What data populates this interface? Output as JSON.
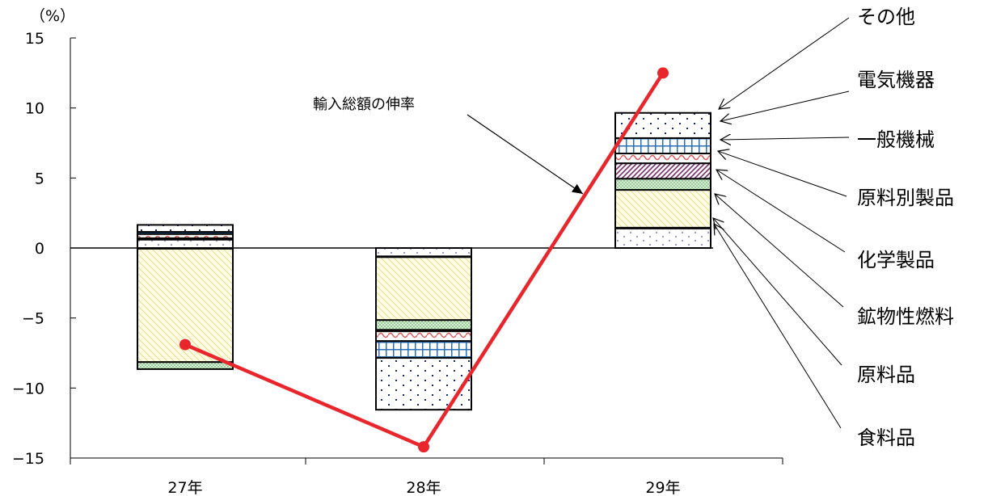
{
  "chart_data": {
    "type": "bar",
    "stacked": true,
    "unit_label": "（%）",
    "categories": [
      "27年",
      "28年",
      "29年"
    ],
    "ylim": [
      -15,
      15
    ],
    "yticks": [
      15,
      10,
      5,
      0,
      -5,
      -10,
      -15
    ],
    "ytick_labels": [
      "15",
      "10",
      "5",
      "0",
      "−5",
      "−10",
      "−15"
    ],
    "series": [
      {
        "name": "食料品",
        "values": [
          0.6,
          -0.6,
          1.4
        ]
      },
      {
        "name": "原料品",
        "values": [
          -0.05,
          -0.05,
          0.05
        ]
      },
      {
        "name": "鉱物性燃料",
        "values": [
          -8.1,
          -4.5,
          2.7
        ]
      },
      {
        "name": "化学製品",
        "values": [
          -0.5,
          -0.7,
          0.8
        ]
      },
      {
        "name": "原料別製品",
        "values": [
          0.1,
          -0.1,
          1.1
        ]
      },
      {
        "name": "一般機械",
        "values": [
          0.3,
          -0.7,
          0.7
        ]
      },
      {
        "name": "電気機器",
        "values": [
          0.15,
          -1.2,
          1.1
        ]
      },
      {
        "name": "その他",
        "values": [
          0.5,
          -3.7,
          1.8
        ]
      }
    ],
    "line": {
      "name": "輸入総額の伸率",
      "values": [
        -6.9,
        -14.2,
        12.5
      ],
      "color": "#e8262c"
    },
    "legend_placement": "right",
    "colors": {
      "outline": "#000000",
      "food": "#9b9bd6",
      "mineral_fuel": "#e8e07a",
      "chemical": "#b85a8e",
      "raw_mfg": "#7fbf7f",
      "machinery": "#7a2a6e",
      "general_machinery": "#e25a5a",
      "electrical": "#2a6fb5",
      "other": "#1a2a7a",
      "line": "#e8262c"
    }
  }
}
